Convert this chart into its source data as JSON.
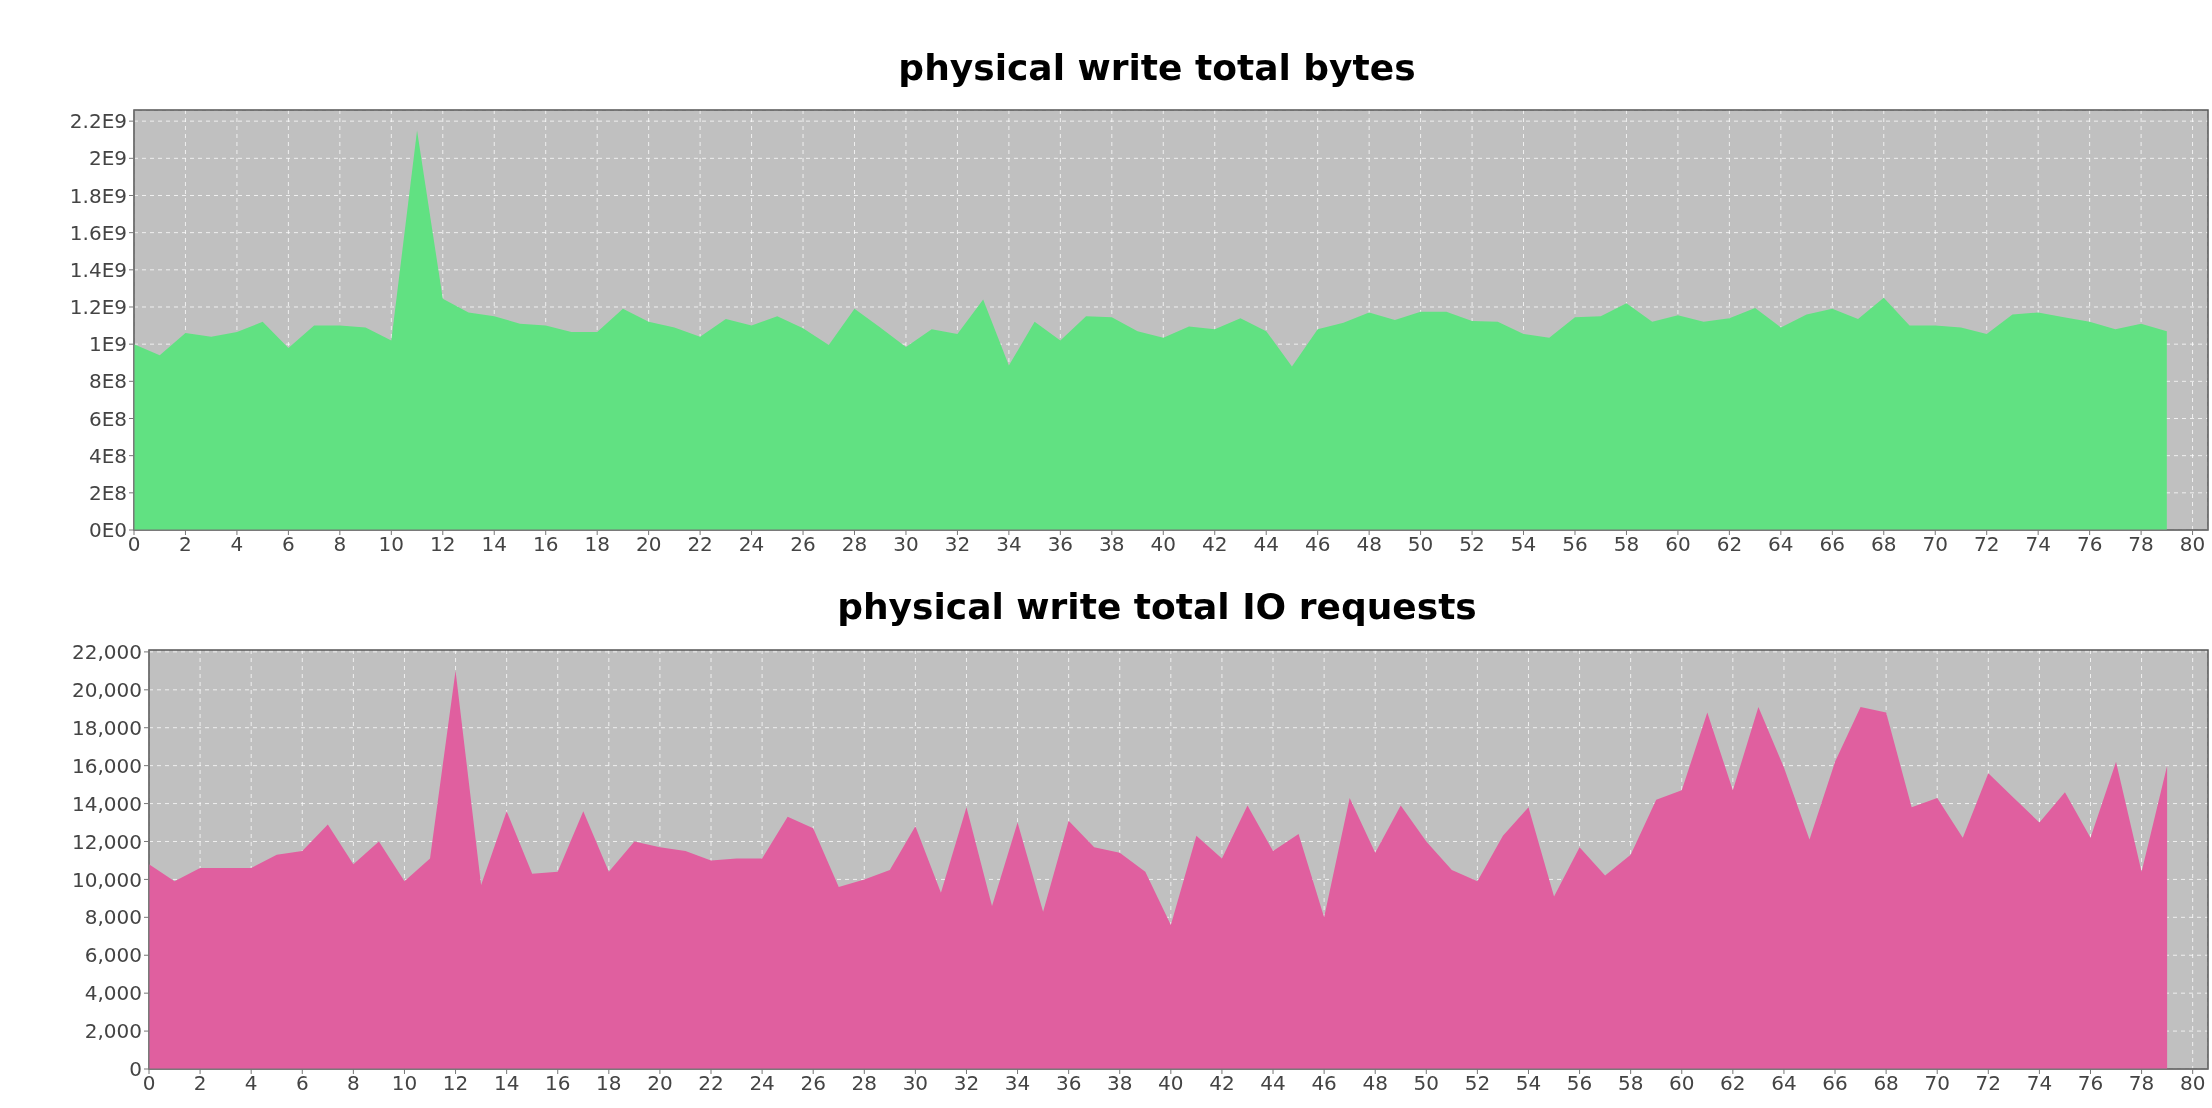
{
  "chart_data": [
    {
      "type": "area",
      "title": "physical write total bytes",
      "x": [
        0,
        1,
        2,
        3,
        4,
        5,
        6,
        7,
        8,
        9,
        10,
        11,
        12,
        13,
        14,
        15,
        16,
        17,
        18,
        19,
        20,
        21,
        22,
        23,
        24,
        25,
        26,
        27,
        28,
        29,
        30,
        31,
        32,
        33,
        34,
        35,
        36,
        37,
        38,
        39,
        40,
        41,
        42,
        43,
        44,
        45,
        46,
        47,
        48,
        49,
        50,
        51,
        52,
        53,
        54,
        55,
        56,
        57,
        58,
        59,
        60,
        61,
        62,
        63,
        64,
        65,
        66,
        67,
        68,
        69,
        70,
        71,
        72,
        73,
        74,
        75,
        76,
        77,
        78,
        79
      ],
      "values": [
        1000000000.0,
        940000000.0,
        1060000000.0,
        1040000000.0,
        1065000000.0,
        1120000000.0,
        980000000.0,
        1100000000.0,
        1100000000.0,
        1090000000.0,
        1020000000.0,
        2150000000.0,
        1245000000.0,
        1170000000.0,
        1150000000.0,
        1110000000.0,
        1100000000.0,
        1065000000.0,
        1065000000.0,
        1190000000.0,
        1120000000.0,
        1090000000.0,
        1040000000.0,
        1135000000.0,
        1100000000.0,
        1150000000.0,
        1085000000.0,
        995000000.0,
        1190000000.0,
        1090000000.0,
        985000000.0,
        1080000000.0,
        1055000000.0,
        1240000000.0,
        885000000.0,
        1120000000.0,
        1020000000.0,
        1150000000.0,
        1145000000.0,
        1070000000.0,
        1035000000.0,
        1095000000.0,
        1080000000.0,
        1140000000.0,
        1070000000.0,
        880000000.0,
        1080000000.0,
        1115000000.0,
        1170000000.0,
        1130000000.0,
        1175000000.0,
        1175000000.0,
        1125000000.0,
        1120000000.0,
        1055000000.0,
        1035000000.0,
        1145000000.0,
        1150000000.0,
        1220000000.0,
        1120000000.0,
        1155000000.0,
        1120000000.0,
        1140000000.0,
        1195000000.0,
        1090000000.0,
        1160000000.0,
        1190000000.0,
        1135000000.0,
        1250000000.0,
        1100000000.0,
        1100000000.0,
        1090000000.0,
        1055000000.0,
        1160000000.0,
        1170000000.0,
        1145000000.0,
        1120000000.0,
        1080000000.0,
        1110000000.0,
        1070000000.0
      ],
      "color": "#61e182",
      "xlim": [
        0,
        80.6
      ],
      "xticks": [
        0,
        2,
        4,
        6,
        8,
        10,
        12,
        14,
        16,
        18,
        20,
        22,
        24,
        26,
        28,
        30,
        32,
        34,
        36,
        38,
        40,
        42,
        44,
        46,
        48,
        50,
        52,
        54,
        56,
        58,
        60,
        62,
        64,
        66,
        68,
        70,
        72,
        74,
        76,
        78,
        80
      ],
      "ylim": [
        0,
        2260000000.0
      ],
      "yticks": [
        {
          "value": 0,
          "label": "0E0"
        },
        {
          "value": 200000000.0,
          "label": "2E8"
        },
        {
          "value": 400000000.0,
          "label": "4E8"
        },
        {
          "value": 600000000.0,
          "label": "6E8"
        },
        {
          "value": 800000000.0,
          "label": "8E8"
        },
        {
          "value": 1000000000.0,
          "label": "1E9"
        },
        {
          "value": 1200000000.0,
          "label": "1.2E9"
        },
        {
          "value": 1400000000.0,
          "label": "1.4E9"
        },
        {
          "value": 1600000000.0,
          "label": "1.6E9"
        },
        {
          "value": 1800000000.0,
          "label": "1.8E9"
        },
        {
          "value": 2000000000.0,
          "label": "2E9"
        },
        {
          "value": 2200000000.0,
          "label": "2.2E9"
        }
      ],
      "grid": true
    },
    {
      "type": "area",
      "title": "physical write total IO requests",
      "x": [
        0,
        1,
        2,
        3,
        4,
        5,
        6,
        7,
        8,
        9,
        10,
        11,
        12,
        13,
        14,
        15,
        16,
        17,
        18,
        19,
        20,
        21,
        22,
        23,
        24,
        25,
        26,
        27,
        28,
        29,
        30,
        31,
        32,
        33,
        34,
        35,
        36,
        37,
        38,
        39,
        40,
        41,
        42,
        43,
        44,
        45,
        46,
        47,
        48,
        49,
        50,
        51,
        52,
        53,
        54,
        55,
        56,
        57,
        58,
        59,
        60,
        61,
        62,
        63,
        64,
        65,
        66,
        67,
        68,
        69,
        70,
        71,
        72,
        73,
        74,
        75,
        76,
        77,
        78,
        79
      ],
      "values": [
        10800,
        9900,
        10600,
        10600,
        10600,
        11300,
        11500,
        12900,
        10800,
        12000,
        9900,
        11100,
        21000,
        9700,
        13600,
        10300,
        10400,
        13600,
        10400,
        12000,
        11700,
        11500,
        11000,
        11100,
        11100,
        13300,
        12700,
        9600,
        10000,
        10500,
        12800,
        9300,
        13800,
        8600,
        13000,
        8300,
        13100,
        11700,
        11400,
        10400,
        7600,
        12300,
        11100,
        13900,
        11500,
        12400,
        8000,
        14300,
        11400,
        13900,
        12000,
        10500,
        9900,
        12300,
        13800,
        9100,
        11700,
        10200,
        11300,
        14200,
        14700,
        18800,
        14700,
        19100,
        15900,
        12100,
        16200,
        19100,
        18800,
        13800,
        14300,
        12200,
        15600,
        14300,
        13000,
        14600,
        12200,
        16200,
        10400,
        16000
      ],
      "color": "#e05f9f",
      "xlim": [
        0,
        80.6
      ],
      "xticks": [
        0,
        2,
        4,
        6,
        8,
        10,
        12,
        14,
        16,
        18,
        20,
        22,
        24,
        26,
        28,
        30,
        32,
        34,
        36,
        38,
        40,
        42,
        44,
        46,
        48,
        50,
        52,
        54,
        56,
        58,
        60,
        62,
        64,
        66,
        68,
        70,
        72,
        74,
        76,
        78,
        80
      ],
      "ylim": [
        0,
        22100
      ],
      "yticks": [
        0,
        {
          "value": 2000,
          "label": "2,000"
        },
        {
          "value": 4000,
          "label": "4,000"
        },
        {
          "value": 6000,
          "label": "6,000"
        },
        {
          "value": 8000,
          "label": "8,000"
        },
        {
          "value": 10000,
          "label": "10,000"
        },
        {
          "value": 12000,
          "label": "12,000"
        },
        {
          "value": 14000,
          "label": "14,000"
        },
        {
          "value": 16000,
          "label": "16,000"
        },
        {
          "value": 18000,
          "label": "18,000"
        },
        {
          "value": 20000,
          "label": "20,000"
        },
        {
          "value": 22000,
          "label": "22,000"
        }
      ],
      "grid": true
    }
  ]
}
